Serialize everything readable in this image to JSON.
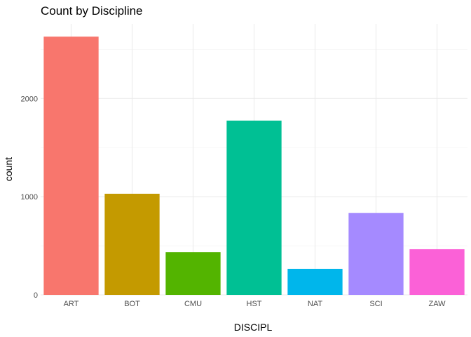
{
  "chart_data": {
    "type": "bar",
    "title": "Count by Discipline",
    "xlabel": "DISCIPL",
    "ylabel": "count",
    "categories": [
      "ART",
      "BOT",
      "CMU",
      "HST",
      "NAT",
      "SCI",
      "ZAW"
    ],
    "values": [
      2630,
      1030,
      435,
      1775,
      265,
      835,
      465
    ],
    "colors": [
      "#F8766D",
      "#C49A00",
      "#53B400",
      "#00C094",
      "#00B6EB",
      "#A58AFF",
      "#FB61D7"
    ],
    "ylim": [
      0,
      2760
    ],
    "yticks": [
      0,
      1000,
      2000
    ],
    "ytick_labels": [
      "0",
      "1000",
      "2000"
    ],
    "grid": true,
    "legend": "none"
  }
}
